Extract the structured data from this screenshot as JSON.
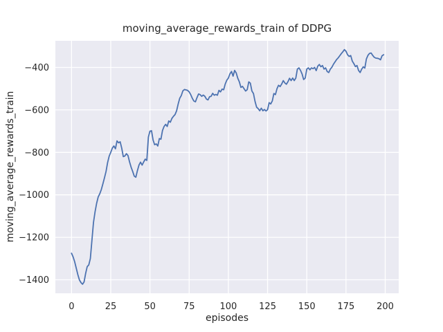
{
  "chart_data": {
    "type": "line",
    "title": "moving_average_rewards_train of DDPG",
    "xlabel": "episodes",
    "ylabel": "moving_average_rewards_train",
    "grid": true,
    "legend": "none",
    "xlim": [
      -10.3,
      208.6
    ],
    "ylim": [
      -1463.5,
      -274.6
    ],
    "x_ticks": [
      0,
      25,
      50,
      75,
      100,
      125,
      150,
      175,
      200
    ],
    "x_tick_labels": [
      "0",
      "25",
      "50",
      "75",
      "100",
      "125",
      "150",
      "175",
      "200"
    ],
    "y_ticks": [
      -400,
      -600,
      -800,
      -1000,
      -1200,
      -1400
    ],
    "y_tick_labels": [
      "−400",
      "−600",
      "−800",
      "−1000",
      "−1200",
      "−1400"
    ],
    "colors": {
      "figure_background": "#ffffff",
      "axes_background": "#eaeaf2",
      "grid": "#ffffff",
      "line": "#4c72b0",
      "text": "#262626"
    },
    "series": [
      {
        "name": "DDPG",
        "x_start": 0,
        "x_step": 1,
        "values": [
          -1275,
          -1292,
          -1315,
          -1345,
          -1375,
          -1400,
          -1413,
          -1421,
          -1410,
          -1370,
          -1338,
          -1330,
          -1300,
          -1215,
          -1130,
          -1080,
          -1040,
          -1010,
          -995,
          -975,
          -948,
          -920,
          -890,
          -848,
          -818,
          -800,
          -780,
          -770,
          -783,
          -746,
          -755,
          -750,
          -780,
          -820,
          -817,
          -806,
          -815,
          -845,
          -870,
          -890,
          -912,
          -917,
          -886,
          -860,
          -846,
          -860,
          -845,
          -832,
          -838,
          -728,
          -700,
          -698,
          -742,
          -764,
          -760,
          -770,
          -735,
          -738,
          -697,
          -678,
          -668,
          -678,
          -652,
          -658,
          -640,
          -630,
          -622,
          -604,
          -572,
          -545,
          -532,
          -510,
          -504,
          -506,
          -508,
          -515,
          -528,
          -545,
          -558,
          -562,
          -542,
          -525,
          -528,
          -536,
          -530,
          -536,
          -549,
          -553,
          -538,
          -536,
          -522,
          -531,
          -527,
          -531,
          -508,
          -515,
          -502,
          -505,
          -478,
          -460,
          -450,
          -430,
          -419,
          -441,
          -414,
          -426,
          -451,
          -468,
          -494,
          -489,
          -500,
          -511,
          -505,
          -468,
          -474,
          -511,
          -523,
          -560,
          -587,
          -594,
          -604,
          -592,
          -604,
          -598,
          -605,
          -599,
          -566,
          -572,
          -558,
          -523,
          -528,
          -500,
          -484,
          -490,
          -478,
          -462,
          -473,
          -479,
          -467,
          -451,
          -462,
          -450,
          -462,
          -450,
          -408,
          -402,
          -414,
          -431,
          -457,
          -450,
          -408,
          -402,
          -411,
          -402,
          -406,
          -400,
          -415,
          -394,
          -386,
          -397,
          -391,
          -408,
          -402,
          -419,
          -424,
          -408,
          -399,
          -385,
          -374,
          -363,
          -355,
          -345,
          -335,
          -326,
          -316,
          -324,
          -340,
          -348,
          -344,
          -370,
          -382,
          -396,
          -391,
          -414,
          -424,
          -408,
          -397,
          -403,
          -360,
          -343,
          -334,
          -332,
          -343,
          -352,
          -356,
          -357,
          -359,
          -364,
          -345,
          -340
        ]
      }
    ]
  }
}
